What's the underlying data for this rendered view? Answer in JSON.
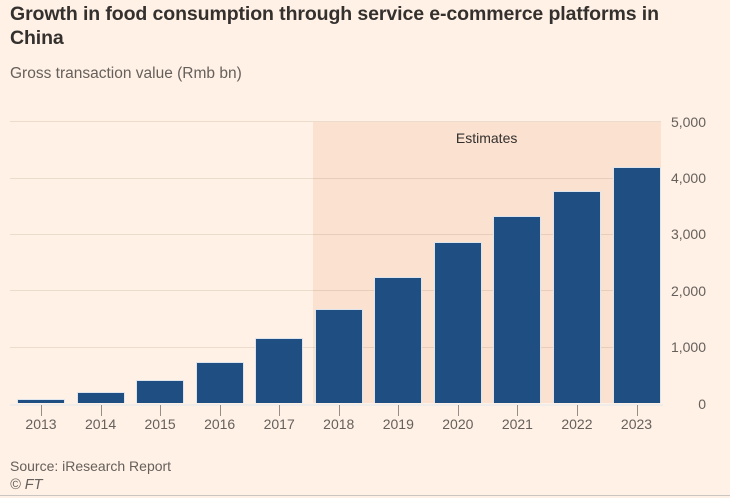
{
  "title": "Growth in food consumption through service e-commerce platforms in China",
  "subtitle": "Gross transaction value (Rmb bn)",
  "source": "Source: iResearch Report",
  "copyright": "© FT",
  "colors": {
    "background": "#FFF1E5",
    "bar": "#1F4E82",
    "estimates_band": "#FBE1D0",
    "title_text": "#33302E",
    "secondary_text": "#66605C"
  },
  "chart_data": {
    "type": "bar",
    "title": "Growth in food consumption through service e-commerce platforms in China",
    "subtitle": "Gross transaction value (Rmb bn)",
    "categories": [
      "2013",
      "2014",
      "2015",
      "2016",
      "2017",
      "2018",
      "2019",
      "2020",
      "2021",
      "2022",
      "2023"
    ],
    "values": [
      85,
      200,
      420,
      730,
      1160,
      1680,
      2245,
      2865,
      3335,
      3770,
      4200
    ],
    "unit": "Rmb bn",
    "ylim": [
      0,
      5000
    ],
    "yticks": [
      0,
      1000,
      2000,
      3000,
      4000,
      5000
    ],
    "ytick_labels": [
      "0",
      "1,000",
      "2,000",
      "3,000",
      "4,000",
      "5,000"
    ],
    "xlabel": "",
    "ylabel": "Gross transaction value (Rmb bn)",
    "grid": true,
    "y_axis_side": "right",
    "annotation": "Estimates",
    "estimates_from_category": "2018",
    "legend": false
  }
}
